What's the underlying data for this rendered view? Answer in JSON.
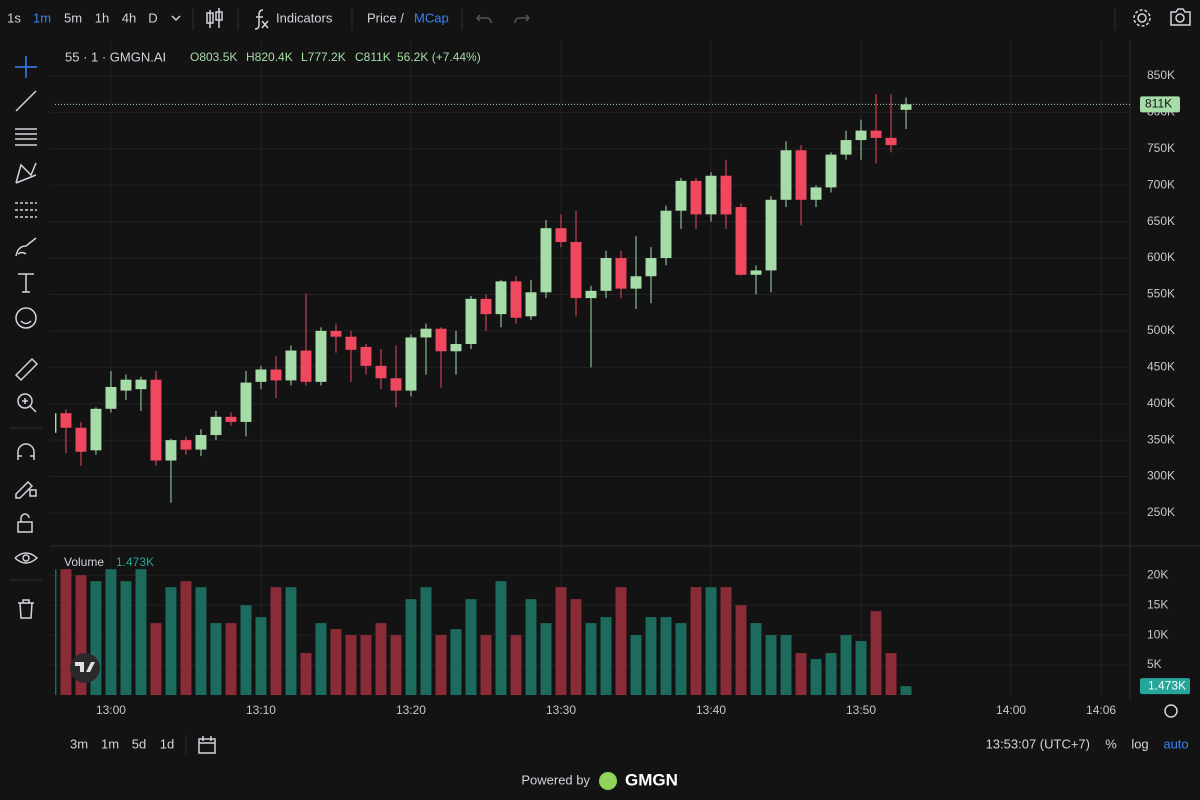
{
  "toolbar": {
    "intervals": [
      "1s",
      "1m",
      "5m",
      "1h",
      "4h",
      "D"
    ],
    "indicators": "Indicators",
    "price": "Price",
    "separator": "/",
    "mcap": "MCap"
  },
  "legend": {
    "symbol": "55 · 1 · GMGN.AI",
    "ohlc": [
      "O803.5K",
      "H820.4K",
      "L777.2K",
      "C811K"
    ],
    "change": "56.2K (+7.44%)"
  },
  "chart_data": {
    "type": "candlestick",
    "x": [
      776,
      777,
      778,
      779,
      780,
      781,
      782,
      783,
      784,
      785,
      786,
      787,
      788,
      789,
      790,
      791,
      792,
      793,
      794,
      795,
      796,
      797,
      798,
      799,
      800,
      801,
      802,
      803,
      804,
      805,
      806,
      807,
      808,
      809,
      810,
      811,
      812,
      813,
      814,
      815,
      816,
      817,
      818,
      819,
      820,
      821,
      822,
      823,
      824,
      825,
      826,
      827,
      828,
      829,
      830,
      831,
      832,
      833
    ],
    "open": [
      360,
      387,
      367,
      336,
      393,
      418,
      420,
      433,
      322,
      350,
      337,
      357,
      382,
      375,
      430,
      447,
      432,
      473,
      430,
      500,
      492,
      478,
      452,
      435,
      418,
      491,
      503,
      472,
      482,
      544,
      523,
      568,
      520,
      553,
      641,
      622,
      545,
      555,
      600,
      558,
      575,
      600,
      665,
      706,
      660,
      713,
      670,
      577,
      583,
      680,
      748,
      680,
      697,
      742,
      762,
      775,
      765,
      803.5
    ],
    "high": [
      390,
      392,
      375,
      395,
      445,
      440,
      437,
      445,
      352,
      355,
      365,
      390,
      388,
      445,
      452,
      465,
      480,
      551,
      505,
      510,
      500,
      482,
      475,
      480,
      495,
      510,
      505,
      500,
      548,
      550,
      570,
      575,
      570,
      652,
      660,
      665,
      562,
      610,
      610,
      630,
      615,
      672,
      710,
      710,
      718,
      735,
      675,
      590,
      685,
      760,
      755,
      700,
      745,
      775,
      790,
      825,
      825,
      820.4
    ],
    "low": [
      355,
      332,
      315,
      330,
      388,
      405,
      390,
      315,
      264,
      330,
      328,
      350,
      370,
      355,
      420,
      408,
      425,
      425,
      425,
      470,
      430,
      440,
      420,
      395,
      410,
      440,
      422,
      440,
      475,
      500,
      505,
      510,
      515,
      545,
      615,
      520,
      450,
      545,
      545,
      530,
      538,
      590,
      640,
      640,
      650,
      640,
      576,
      550,
      553,
      670,
      645,
      670,
      690,
      735,
      735,
      730,
      745,
      777.2
    ],
    "close": [
      387,
      367,
      334,
      393,
      423,
      433,
      433,
      322,
      350,
      337,
      357,
      382,
      375,
      429,
      447,
      432,
      473,
      430,
      500,
      492,
      474,
      452,
      435,
      418,
      491,
      503,
      472,
      482,
      544,
      523,
      568,
      518,
      553,
      641,
      622,
      545,
      555,
      600,
      558,
      575,
      600,
      665,
      706,
      660,
      713,
      660,
      577,
      583,
      680,
      748,
      680,
      697,
      742,
      762,
      775,
      765,
      755,
      811
    ],
    "volume": [
      21,
      21,
      20,
      19,
      21,
      19,
      21,
      12,
      18,
      19,
      18,
      12,
      12,
      15,
      13,
      18,
      18,
      7,
      12,
      11,
      10,
      10,
      12,
      10,
      16,
      18,
      10,
      11,
      16,
      10,
      19,
      10,
      16,
      12,
      18,
      16,
      12,
      13,
      18,
      10,
      13,
      13,
      12,
      18,
      18,
      18,
      15,
      12,
      10,
      10,
      7,
      6,
      7,
      10,
      9,
      14,
      7,
      1.473
    ],
    "up_color": "#a5dca8",
    "down_color": "#f0485f",
    "volume_up_color": "#1d6b5d",
    "volume_down_color": "#8a2c37",
    "last_close_label": "811K",
    "volume_label": "Volume",
    "last_volume_label": "1.473K",
    "xlim": [
      776.27,
      847.93
    ],
    "xticks": [
      {
        "value": 780,
        "label": "13:00"
      },
      {
        "value": 790,
        "label": "13:10"
      },
      {
        "value": 800,
        "label": "13:20"
      },
      {
        "value": 810,
        "label": "13:30"
      },
      {
        "value": 820,
        "label": "13:40"
      },
      {
        "value": 830,
        "label": "13:50"
      },
      {
        "value": 840,
        "label": "14:00"
      },
      {
        "value": 846,
        "label": "14:06"
      }
    ],
    "ylim": [
      206,
      899.4
    ],
    "yticks": [
      {
        "value": 250,
        "label": "250K"
      },
      {
        "value": 300,
        "label": "300K"
      },
      {
        "value": 350,
        "label": "350K"
      },
      {
        "value": 400,
        "label": "400K"
      },
      {
        "value": 450,
        "label": "450K"
      },
      {
        "value": 500,
        "label": "500K"
      },
      {
        "value": 550,
        "label": "550K"
      },
      {
        "value": 600,
        "label": "600K"
      },
      {
        "value": 650,
        "label": "650K"
      },
      {
        "value": 700,
        "label": "700K"
      },
      {
        "value": 750,
        "label": "750K"
      },
      {
        "value": 800,
        "label": "800K"
      },
      {
        "value": 850,
        "label": "850K"
      }
    ],
    "volume_ylim": [
      0,
      23.7
    ],
    "volume_yticks": [
      {
        "value": 5,
        "label": "5K"
      },
      {
        "value": 10,
        "label": "10K"
      },
      {
        "value": 15,
        "label": "15K"
      },
      {
        "value": 20,
        "label": "20K"
      }
    ],
    "grid": true
  },
  "bottom": {
    "ranges": [
      "3m",
      "1m",
      "5d",
      "1d"
    ],
    "clock": "13:53:07 (UTC+7)",
    "percent": "%",
    "log": "log",
    "auto": "auto"
  },
  "footer": {
    "powered": "Powered by",
    "brand": "GMGN"
  }
}
